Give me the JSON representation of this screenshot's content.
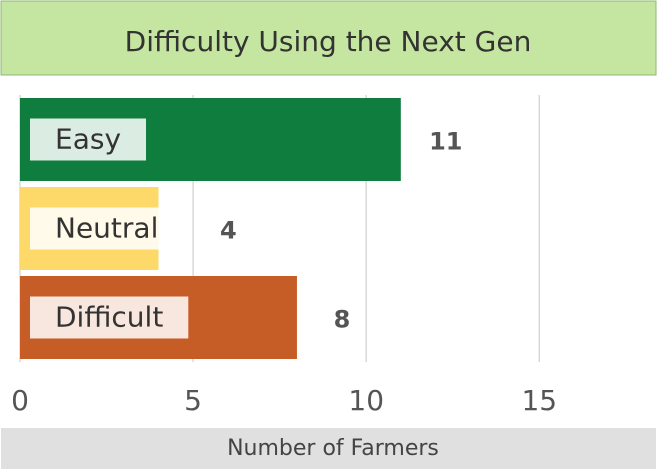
{
  "chart_data": {
    "type": "bar",
    "orientation": "horizontal",
    "title": "Difficulty Using the Next Gen",
    "categories": [
      "Easy",
      "Neutral",
      "Difficult"
    ],
    "values": [
      11,
      4,
      8
    ],
    "colors": [
      "#0f7d3e",
      "#fdd96a",
      "#c65d26"
    ],
    "xlabel": "Number of Farmers",
    "xlim": [
      0,
      18.4
    ],
    "xticks": [
      0,
      5,
      10,
      15
    ],
    "grid": true
  }
}
